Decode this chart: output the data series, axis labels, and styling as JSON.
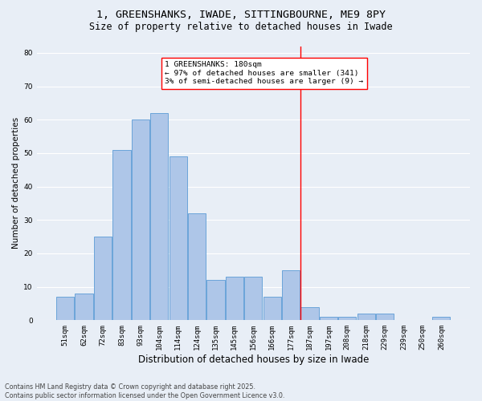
{
  "title1": "1, GREENSHANKS, IWADE, SITTINGBOURNE, ME9 8PY",
  "title2": "Size of property relative to detached houses in Iwade",
  "xlabel": "Distribution of detached houses by size in Iwade",
  "ylabel": "Number of detached properties",
  "categories": [
    "51sqm",
    "62sqm",
    "72sqm",
    "83sqm",
    "93sqm",
    "104sqm",
    "114sqm",
    "124sqm",
    "135sqm",
    "145sqm",
    "156sqm",
    "166sqm",
    "177sqm",
    "187sqm",
    "197sqm",
    "208sqm",
    "218sqm",
    "229sqm",
    "239sqm",
    "250sqm",
    "260sqm"
  ],
  "values": [
    7,
    8,
    25,
    51,
    60,
    62,
    49,
    32,
    12,
    13,
    13,
    7,
    15,
    4,
    1,
    1,
    2,
    2,
    0,
    0,
    1
  ],
  "bar_color": "#aec6e8",
  "bar_edge_color": "#5b9bd5",
  "background_color": "#e8eef6",
  "grid_color": "#ffffff",
  "vline_color": "red",
  "annotation_text": "1 GREENSHANKS: 180sqm\n← 97% of detached houses are smaller (341)\n3% of semi-detached houses are larger (9) →",
  "annotation_box_color": "white",
  "annotation_box_edge_color": "red",
  "ylim": [
    0,
    82
  ],
  "yticks": [
    0,
    10,
    20,
    30,
    40,
    50,
    60,
    70,
    80
  ],
  "footnote": "Contains HM Land Registry data © Crown copyright and database right 2025.\nContains public sector information licensed under the Open Government Licence v3.0.",
  "title_fontsize": 9.5,
  "subtitle_fontsize": 8.5,
  "xlabel_fontsize": 8.5,
  "ylabel_fontsize": 7.5,
  "tick_fontsize": 6.5,
  "annot_fontsize": 6.8,
  "footnote_fontsize": 5.8
}
